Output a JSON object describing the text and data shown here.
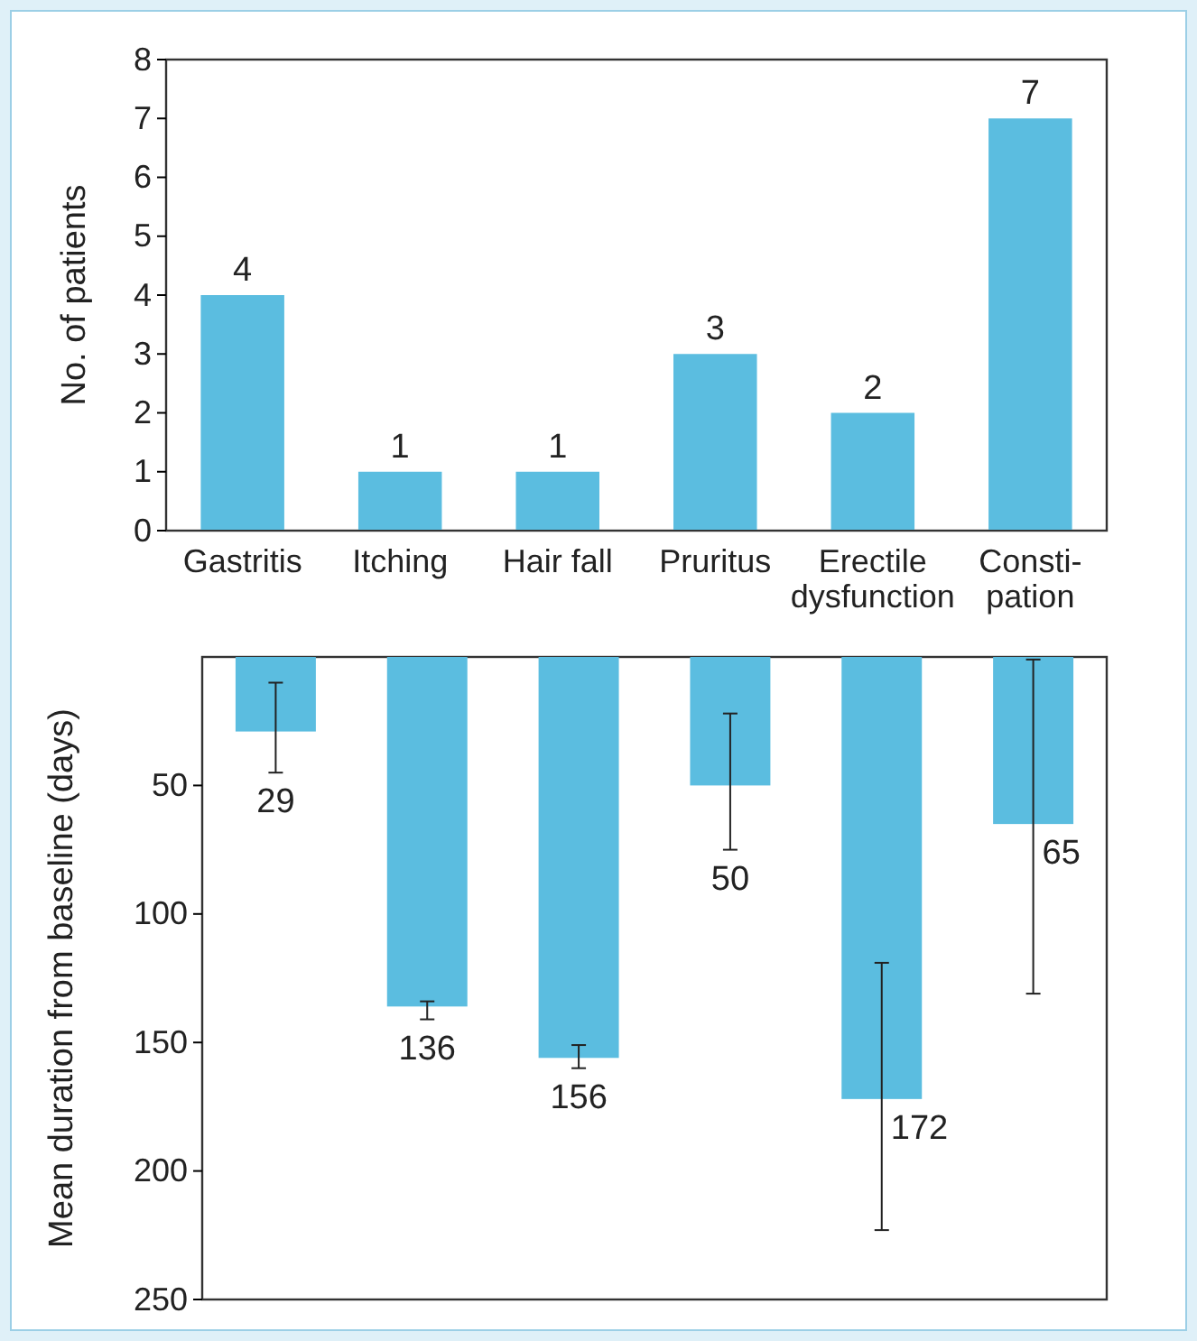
{
  "chart_data": [
    {
      "type": "bar",
      "ylabel": "No. of patients",
      "categories": [
        "Gastritis",
        "Itching",
        "Hair fall",
        "Pruritus",
        "Erectile\ndysfunction",
        "Consti-\npation"
      ],
      "values": [
        4,
        1,
        1,
        3,
        2,
        7
      ],
      "color": "#5bbde0",
      "ylim": [
        0,
        8
      ],
      "yticks": [
        0,
        1,
        2,
        3,
        4,
        5,
        6,
        7,
        8
      ],
      "data_labels": true
    },
    {
      "type": "bar",
      "ylabel": "Mean duration from baseline (days)",
      "categories": [
        null,
        null,
        null,
        null,
        null,
        null
      ],
      "values": [
        29,
        136,
        156,
        50,
        172,
        65
      ],
      "color": "#5bbde0",
      "errors": [
        [
          10,
          45
        ],
        [
          134,
          141
        ],
        [
          151,
          160
        ],
        [
          22,
          75
        ],
        [
          119,
          223
        ],
        [
          1,
          131
        ]
      ],
      "ylim": [
        250,
        0
      ],
      "yticks": [
        50,
        100,
        150,
        200,
        250
      ],
      "data_labels": true
    }
  ]
}
